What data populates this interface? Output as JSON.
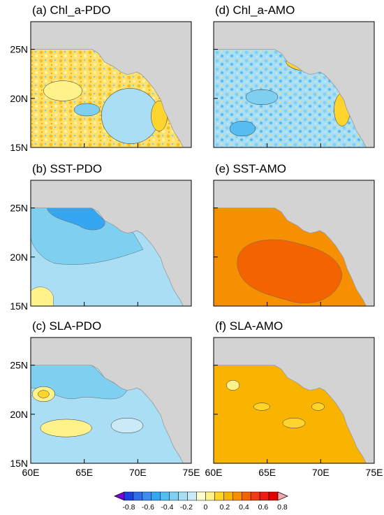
{
  "figure": {
    "panels": [
      {
        "id": "a",
        "title": "(a) Chl_a-PDO",
        "pattern": "mixed-warm"
      },
      {
        "id": "d",
        "title": "(d) Chl_a-AMO",
        "pattern": "mixed-cool"
      },
      {
        "id": "b",
        "title": "(b) SST-PDO",
        "pattern": "cool"
      },
      {
        "id": "e",
        "title": "(e) SST-AMO",
        "pattern": "warm-strong"
      },
      {
        "id": "c",
        "title": "(c) SLA-PDO",
        "pattern": "cool-weak"
      },
      {
        "id": "f",
        "title": "(f) SLA-AMO",
        "pattern": "warm"
      }
    ],
    "lat_ticks": [
      "25N",
      "20N",
      "15N"
    ],
    "lon_ticks": [
      "60E",
      "65E",
      "70E",
      "75E"
    ],
    "colorbar": {
      "tick_labels": [
        "-0.8",
        "-0.6",
        "-0.4",
        "-0.2",
        "0",
        "0.2",
        "0.4",
        "0.6",
        "0.8"
      ],
      "levels": [
        -0.8,
        -0.7,
        -0.6,
        -0.5,
        -0.4,
        -0.3,
        -0.2,
        -0.1,
        0,
        0.1,
        0.2,
        0.3,
        0.4,
        0.5,
        0.6,
        0.7,
        0.8
      ],
      "colors": [
        "#7b00e0",
        "#1c3fe0",
        "#2e6de8",
        "#3b8ef0",
        "#35a6f2",
        "#56bdf2",
        "#7fd0f0",
        "#a9def4",
        "#c9eaf6",
        "#ffffd2",
        "#fff28a",
        "#ffd42c",
        "#f9b400",
        "#f79000",
        "#f36400",
        "#f23a14",
        "#ee1a14",
        "#e00000",
        "#f7a8b0"
      ]
    },
    "colors": {
      "land": "#d3d3d3",
      "missing": "#ffffff",
      "frame": "#000000"
    }
  }
}
